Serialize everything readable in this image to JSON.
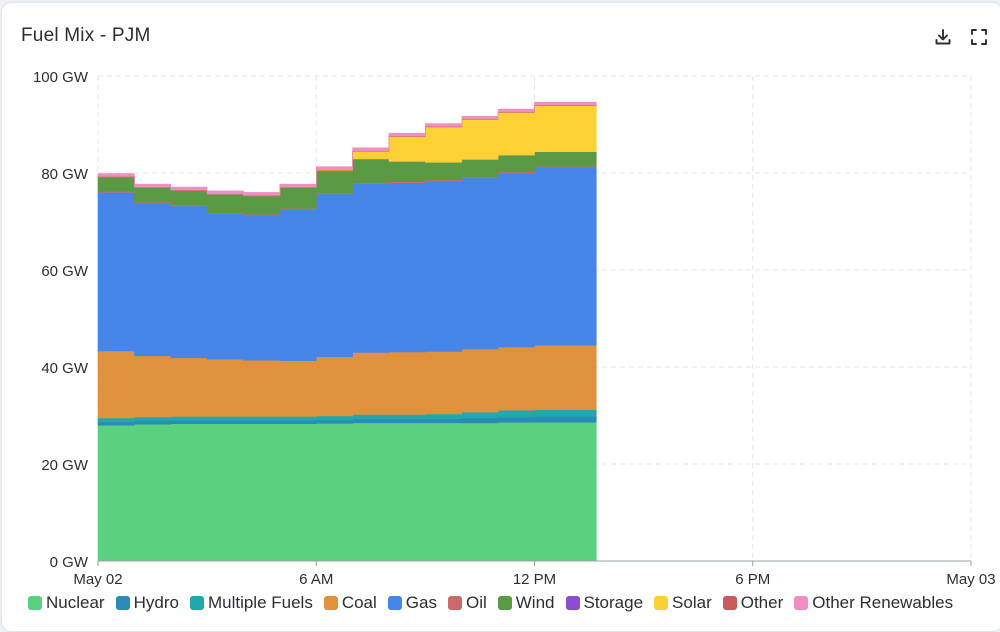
{
  "header": {
    "title": "Fuel Mix - PJM",
    "download_icon": "download-icon",
    "fullscreen_icon": "fullscreen-icon"
  },
  "chart_data": {
    "type": "area",
    "stacked": true,
    "step": true,
    "title": "Fuel Mix - PJM",
    "xlabel": "",
    "ylabel": "",
    "ylim": [
      0,
      100
    ],
    "yticks": [
      "0 GW",
      "20 GW",
      "40 GW",
      "60 GW",
      "80 GW",
      "100 GW"
    ],
    "xlim": [
      0,
      24
    ],
    "xticks": [
      {
        "hour": 0,
        "label": "May 02"
      },
      {
        "hour": 6,
        "label": "6 AM"
      },
      {
        "hour": 12,
        "label": "12 PM"
      },
      {
        "hour": 18,
        "label": "6 PM"
      },
      {
        "hour": 24,
        "label": "May 03"
      }
    ],
    "grid": true,
    "legend_position": "bottom",
    "x": [
      0,
      1,
      2,
      3,
      4,
      5,
      6,
      7,
      8,
      9,
      10,
      11,
      12,
      13
    ],
    "series": [
      {
        "name": "Nuclear",
        "color": "#5ad17e",
        "values": [
          28,
          28.2,
          28.3,
          28.3,
          28.3,
          28.3,
          28.4,
          28.5,
          28.5,
          28.5,
          28.5,
          28.6,
          28.6,
          28.6
        ]
      },
      {
        "name": "Hydro",
        "color": "#2a8bb7",
        "values": [
          0.7,
          0.7,
          0.7,
          0.7,
          0.7,
          0.7,
          0.7,
          0.8,
          0.8,
          0.8,
          1.0,
          1.1,
          1.2,
          1.2
        ]
      },
      {
        "name": "Multiple Fuels",
        "color": "#1fa9ad",
        "values": [
          0.8,
          0.8,
          0.8,
          0.8,
          0.8,
          0.8,
          0.8,
          0.9,
          0.9,
          1.0,
          1.2,
          1.4,
          1.4,
          1.4
        ]
      },
      {
        "name": "Coal",
        "color": "#e0913e",
        "values": [
          13.8,
          12.6,
          12.1,
          11.8,
          11.6,
          11.5,
          12.2,
          12.8,
          12.9,
          12.9,
          13.0,
          13.0,
          13.3,
          13.3
        ]
      },
      {
        "name": "Gas",
        "color": "#4686e9",
        "values": [
          32.7,
          31.5,
          31.3,
          30.0,
          29.9,
          31.2,
          33.6,
          34.8,
          34.9,
          35.2,
          35.3,
          35.9,
          36.7,
          36.7
        ]
      },
      {
        "name": "Oil",
        "color": "#c86a6a",
        "values": [
          0.2,
          0.2,
          0.2,
          0.2,
          0.2,
          0.2,
          0.2,
          0.2,
          0.2,
          0.2,
          0.2,
          0.2,
          0.2,
          0.2
        ]
      },
      {
        "name": "Wind",
        "color": "#5a9a44",
        "values": [
          3.0,
          3.0,
          3.0,
          3.8,
          3.8,
          4.3,
          4.6,
          4.9,
          4.2,
          3.6,
          3.6,
          3.5,
          3.0,
          3.0
        ]
      },
      {
        "name": "Storage",
        "color": "#8a4dd0",
        "values": [
          0,
          0,
          0,
          0,
          0,
          0,
          0,
          0,
          0,
          0,
          0,
          0,
          0,
          0
        ]
      },
      {
        "name": "Solar",
        "color": "#fdd034",
        "values": [
          0,
          0,
          0,
          0,
          0,
          0,
          0.1,
          1.6,
          5.1,
          7.3,
          8.2,
          8.8,
          9.5,
          9.5
        ]
      },
      {
        "name": "Other",
        "color": "#c75b5b",
        "values": [
          0.1,
          0.1,
          0.1,
          0.1,
          0.1,
          0.1,
          0.1,
          0.1,
          0.1,
          0.1,
          0.1,
          0.1,
          0.1,
          0.1
        ]
      },
      {
        "name": "Other Renewables",
        "color": "#ef8ec1",
        "values": [
          0.6,
          0.6,
          0.6,
          0.6,
          0.6,
          0.6,
          0.6,
          0.6,
          0.6,
          0.6,
          0.6,
          0.6,
          0.6,
          0.6
        ]
      }
    ],
    "end_hour": 13
  }
}
